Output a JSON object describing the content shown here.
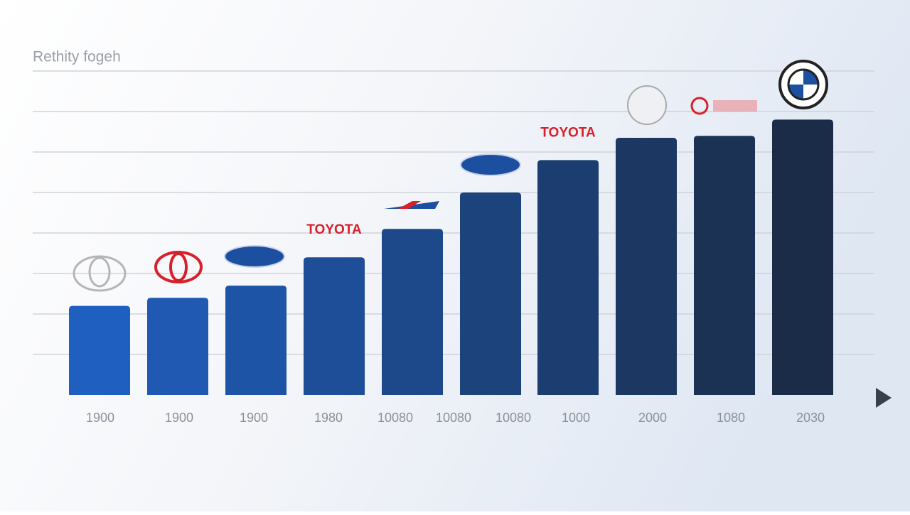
{
  "chart_data": {
    "type": "bar",
    "subtitle": "Rethity fogeh",
    "categories": [
      "1900",
      "1900",
      "1900",
      "1980",
      "10080",
      "10080",
      "10080",
      "1000",
      "2000",
      "1080",
      "2030"
    ],
    "values": [
      2.2,
      2.4,
      2.7,
      3.4,
      4.1,
      null,
      5.0,
      5.8,
      6.35,
      6.4,
      6.8
    ],
    "color_start": "#1f5fbf",
    "color_end": "#1b2c48",
    "ylim": [
      0,
      8
    ],
    "gridlines": [
      1,
      2,
      3,
      4,
      5,
      6,
      7,
      8
    ],
    "annotations": [
      "TOYOTA",
      "TOYOTA"
    ],
    "annotation_color": "#d8202a"
  }
}
